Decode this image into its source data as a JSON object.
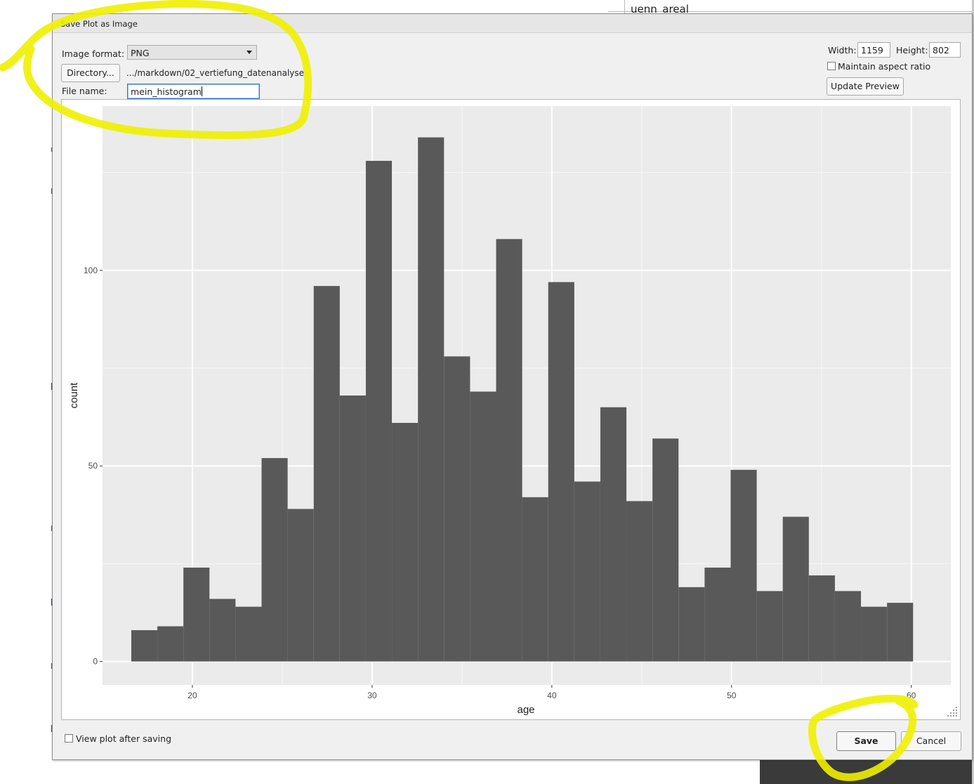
{
  "background": {
    "top_fragment_text": "uenn_areal"
  },
  "dialog": {
    "title": "Save Plot as Image",
    "image_format_label": "Image format:",
    "image_format_value": "PNG",
    "directory_button": "Directory...",
    "directory_path": ".../markdown/02_vertiefung_datenanalyse",
    "file_name_label": "File name:",
    "file_name_value": "mein_histogram",
    "width_label": "Width:",
    "width_value": "1159",
    "height_label": "Height:",
    "height_value": "802",
    "maintain_aspect_label": "Maintain aspect ratio",
    "maintain_aspect_checked": false,
    "update_preview_button": "Update Preview",
    "view_after_saving_label": "View plot after saving",
    "view_after_saving_checked": false,
    "save_button": "Save",
    "cancel_button": "Cancel"
  },
  "annotation_color": "#f0f000",
  "chart_data": {
    "type": "bar",
    "title": "",
    "xlabel": "age",
    "ylabel": "count",
    "xlim": [
      15,
      62.2
    ],
    "ylim": [
      -6,
      142
    ],
    "x_ticks": [
      20,
      30,
      40,
      50,
      60
    ],
    "y_ticks": [
      0,
      50,
      100
    ],
    "bar_color": "#595959",
    "panel_color": "#ebebeb",
    "grid": true,
    "bins": [
      {
        "x0": 16.6,
        "x1": 18.05,
        "count": 8
      },
      {
        "x0": 18.05,
        "x1": 19.5,
        "count": 9
      },
      {
        "x0": 19.5,
        "x1": 20.95,
        "count": 24
      },
      {
        "x0": 20.95,
        "x1": 22.4,
        "count": 16
      },
      {
        "x0": 22.4,
        "x1": 23.85,
        "count": 14
      },
      {
        "x0": 23.85,
        "x1": 25.3,
        "count": 52
      },
      {
        "x0": 25.3,
        "x1": 26.75,
        "count": 39
      },
      {
        "x0": 26.75,
        "x1": 28.2,
        "count": 96
      },
      {
        "x0": 28.2,
        "x1": 29.65,
        "count": 68
      },
      {
        "x0": 29.65,
        "x1": 31.1,
        "count": 128
      },
      {
        "x0": 31.1,
        "x1": 32.55,
        "count": 61
      },
      {
        "x0": 32.55,
        "x1": 34.0,
        "count": 134
      },
      {
        "x0": 34.0,
        "x1": 35.45,
        "count": 78
      },
      {
        "x0": 35.45,
        "x1": 36.9,
        "count": 69
      },
      {
        "x0": 36.9,
        "x1": 38.35,
        "count": 108
      },
      {
        "x0": 38.35,
        "x1": 39.8,
        "count": 42
      },
      {
        "x0": 39.8,
        "x1": 41.25,
        "count": 97
      },
      {
        "x0": 41.25,
        "x1": 42.7,
        "count": 46
      },
      {
        "x0": 42.7,
        "x1": 44.15,
        "count": 65
      },
      {
        "x0": 44.15,
        "x1": 45.6,
        "count": 41
      },
      {
        "x0": 45.6,
        "x1": 47.05,
        "count": 57
      },
      {
        "x0": 47.05,
        "x1": 48.5,
        "count": 19
      },
      {
        "x0": 48.5,
        "x1": 49.95,
        "count": 24
      },
      {
        "x0": 49.95,
        "x1": 51.4,
        "count": 49
      },
      {
        "x0": 51.4,
        "x1": 52.85,
        "count": 18
      },
      {
        "x0": 52.85,
        "x1": 54.3,
        "count": 37
      },
      {
        "x0": 54.3,
        "x1": 55.75,
        "count": 22
      },
      {
        "x0": 55.75,
        "x1": 57.2,
        "count": 18
      },
      {
        "x0": 57.2,
        "x1": 58.65,
        "count": 14
      },
      {
        "x0": 58.65,
        "x1": 60.1,
        "count": 15
      }
    ]
  }
}
